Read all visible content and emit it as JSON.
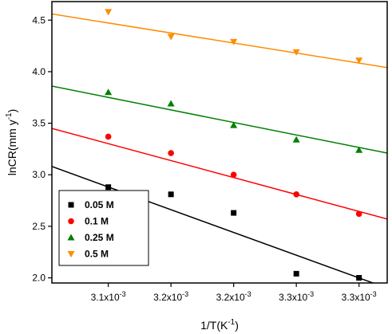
{
  "chart_data": {
    "type": "scatter",
    "xlabel": "1/T",
    "xlabel_unit": "K",
    "xlabel_unit_exp": "-1",
    "ylabel": "lnCR",
    "ylabel_unit": "mm y",
    "ylabel_unit_exp": "-1",
    "x_ticks": [
      {
        "x": 1,
        "mantissa": "3.1x10",
        "exp": "-3"
      },
      {
        "x": 2,
        "mantissa": "3.2x10",
        "exp": "-3"
      },
      {
        "x": 3,
        "mantissa": "3.2x10",
        "exp": "-3"
      },
      {
        "x": 4,
        "mantissa": "3.3x10",
        "exp": "-3"
      },
      {
        "x": 5,
        "mantissa": "3.3x10",
        "exp": "-3"
      }
    ],
    "xlim": [
      0.1,
      5.45
    ],
    "ylim": [
      1.95,
      4.68
    ],
    "y_ticks": [
      {
        "value": 2.0,
        "label": "2.0"
      },
      {
        "value": 2.5,
        "label": "2.5"
      },
      {
        "value": 3.0,
        "label": "3.0"
      },
      {
        "value": 3.5,
        "label": "3.5"
      },
      {
        "value": 4.0,
        "label": "4.0"
      },
      {
        "value": 4.5,
        "label": "4.5"
      }
    ],
    "grid": false,
    "legend_position": "bottom-left",
    "series": [
      {
        "name": "0.05 M",
        "marker": "square",
        "color": "#000000",
        "line_color": "#000000",
        "x": [
          1,
          2,
          3,
          4,
          5
        ],
        "y": [
          2.88,
          2.81,
          2.63,
          2.04,
          2.0
        ],
        "fit": {
          "x": [
            0.1,
            5.45
          ],
          "y": [
            3.08,
            1.9
          ]
        }
      },
      {
        "name": "0.1 M",
        "marker": "circle",
        "color": "#ff0000",
        "line_color": "#ff0000",
        "x": [
          1,
          2,
          3,
          4,
          5
        ],
        "y": [
          3.37,
          3.21,
          3.0,
          2.81,
          2.62
        ],
        "fit": {
          "x": [
            0.1,
            5.45
          ],
          "y": [
            3.45,
            2.57
          ]
        }
      },
      {
        "name": "0.25 M",
        "marker": "triangle-up",
        "color": "#008000",
        "line_color": "#008000",
        "x": [
          1,
          2,
          3,
          4,
          5
        ],
        "y": [
          3.8,
          3.69,
          3.48,
          3.34,
          3.24
        ],
        "fit": {
          "x": [
            0.1,
            5.45
          ],
          "y": [
            3.86,
            3.21
          ]
        }
      },
      {
        "name": "0.5 M",
        "marker": "triangle-down",
        "color": "#ff8c00",
        "line_color": "#ff8c00",
        "x": [
          1,
          2,
          3,
          4,
          5
        ],
        "y": [
          4.58,
          4.34,
          4.29,
          4.19,
          4.11
        ],
        "fit": {
          "x": [
            0.1,
            5.45
          ],
          "y": [
            4.56,
            4.04
          ]
        }
      }
    ]
  }
}
